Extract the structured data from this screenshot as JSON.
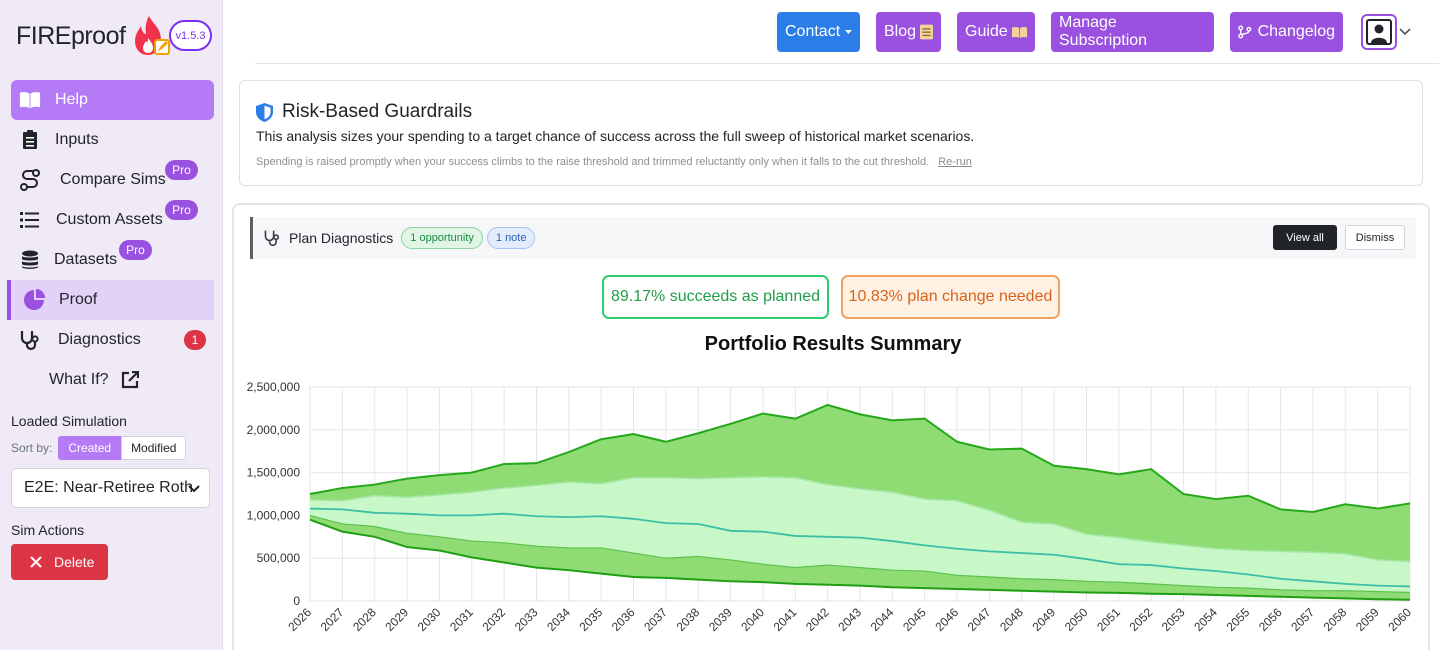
{
  "brand": {
    "name": "FIREproof",
    "version": "v1.5.3"
  },
  "colors": {
    "accent": "#9b51e0",
    "primary": "#2b7ee8",
    "danger": "#dc3545",
    "success": "#2ecc71",
    "warning": "#f0a35e"
  },
  "sidebar": {
    "items": [
      {
        "label": "Help",
        "icon": "book-open-icon"
      },
      {
        "label": "Inputs",
        "icon": "clipboard-list-icon"
      },
      {
        "label": "Compare Sims",
        "icon": "route-icon",
        "badge": "Pro"
      },
      {
        "label": "Custom Assets",
        "icon": "list-icon",
        "badge": "Pro"
      },
      {
        "label": "Datasets",
        "icon": "database-icon",
        "badge": "Pro"
      },
      {
        "label": "Proof",
        "icon": "pie-chart-icon"
      },
      {
        "label": "Diagnostics",
        "icon": "stethoscope-icon",
        "count": "1"
      },
      {
        "label": "What If?",
        "icon": "external-link-icon"
      }
    ],
    "loaded_label": "Loaded Simulation",
    "sort_label": "Sort by:",
    "sort_created": "Created",
    "sort_modified": "Modified",
    "selected_sim": "E2E: Near-Retiree Roth",
    "actions_label": "Sim Actions",
    "delete_label": "Delete"
  },
  "topnav": {
    "contact": "Contact",
    "blog": "Blog",
    "guide": "Guide",
    "subscription": "Manage Subscription",
    "changelog": "Changelog"
  },
  "risk": {
    "title": "Risk-Based Guardrails",
    "description": "This analysis sizes your spending to a target chance of success across the full sweep of historical market scenarios.",
    "note": "Spending is raised promptly when your success climbs to the raise threshold and trimmed reluctantly only when it falls to the cut threshold.",
    "rerun": "Re-run"
  },
  "diagnostics": {
    "title": "Plan Diagnostics",
    "chip_opportunity": "1 opportunity",
    "chip_note": "1 note",
    "view_all": "View all",
    "dismiss": "Dismiss"
  },
  "summary": {
    "success_pct": "89.17%",
    "success_text": "succeeds as planned",
    "fail_pct": "10.83%",
    "fail_text": "plan change needed"
  },
  "chart_data": {
    "type": "area",
    "title": "Portfolio Results Summary",
    "ylim": [
      0,
      2500000
    ],
    "y_ticks": [
      "2,500,000",
      "2,000,000",
      "1,500,000",
      "1,000,000",
      "500,000",
      "0"
    ],
    "x": [
      "2026",
      "2027",
      "2028",
      "2029",
      "2030",
      "2031",
      "2032",
      "2033",
      "2034",
      "2035",
      "2036",
      "2037",
      "2038",
      "2039",
      "2040",
      "2041",
      "2042",
      "2043",
      "2044",
      "2045",
      "2046",
      "2047",
      "2048",
      "2049",
      "2050",
      "2051",
      "2052",
      "2053",
      "2054",
      "2055",
      "2056",
      "2057",
      "2058",
      "2059",
      "2060"
    ],
    "grid": true,
    "bands": {
      "max": [
        1250000,
        1320000,
        1360000,
        1430000,
        1470000,
        1500000,
        1600000,
        1610000,
        1740000,
        1890000,
        1950000,
        1860000,
        1960000,
        2070000,
        2190000,
        2130000,
        2290000,
        2180000,
        2110000,
        2130000,
        1860000,
        1770000,
        1780000,
        1580000,
        1540000,
        1480000,
        1540000,
        1250000,
        1190000,
        1230000,
        1070000,
        1040000,
        1130000,
        1080000,
        1140000
      ],
      "upper": [
        1180000,
        1170000,
        1230000,
        1210000,
        1240000,
        1270000,
        1320000,
        1350000,
        1390000,
        1370000,
        1440000,
        1440000,
        1430000,
        1440000,
        1450000,
        1440000,
        1360000,
        1310000,
        1270000,
        1190000,
        1170000,
        1060000,
        920000,
        900000,
        780000,
        740000,
        690000,
        650000,
        610000,
        590000,
        580000,
        570000,
        550000,
        480000,
        460000
      ],
      "median": [
        1080000,
        1070000,
        1030000,
        1020000,
        1000000,
        1000000,
        1020000,
        990000,
        980000,
        990000,
        960000,
        910000,
        900000,
        820000,
        810000,
        760000,
        750000,
        740000,
        700000,
        650000,
        610000,
        580000,
        560000,
        540000,
        490000,
        430000,
        420000,
        380000,
        350000,
        310000,
        260000,
        230000,
        200000,
        180000,
        170000
      ],
      "lower": [
        1000000,
        900000,
        870000,
        790000,
        750000,
        700000,
        680000,
        640000,
        620000,
        620000,
        560000,
        500000,
        520000,
        480000,
        430000,
        390000,
        420000,
        390000,
        360000,
        350000,
        300000,
        280000,
        260000,
        250000,
        230000,
        220000,
        200000,
        180000,
        160000,
        150000,
        130000,
        120000,
        120000,
        110000,
        100000
      ],
      "min": [
        950000,
        810000,
        750000,
        630000,
        590000,
        510000,
        450000,
        390000,
        360000,
        320000,
        280000,
        270000,
        250000,
        230000,
        220000,
        200000,
        190000,
        180000,
        160000,
        150000,
        140000,
        130000,
        120000,
        110000,
        100000,
        95000,
        85000,
        80000,
        70000,
        60000,
        50000,
        40000,
        30000,
        20000,
        15000
      ]
    }
  }
}
